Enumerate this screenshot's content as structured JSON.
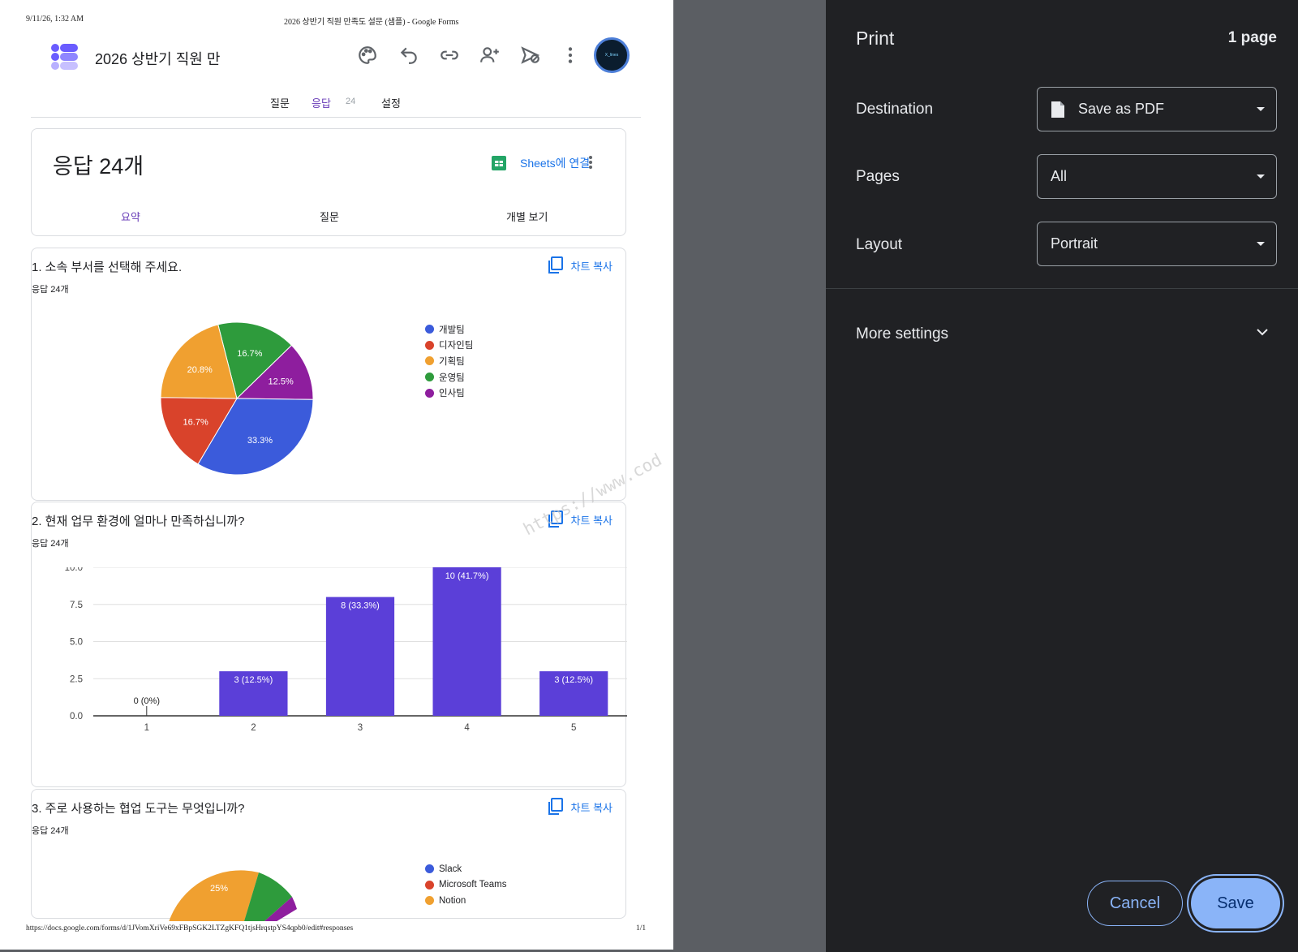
{
  "print_header": {
    "datetime": "9/11/26, 1:32 AM",
    "doc_title": "2026 상반기 직원 만족도 설문 (샘플) - Google Forms"
  },
  "print_footer": {
    "url": "https://docs.google.com/forms/d/1JVomXriVe69xFBpSGK2LTZgKFQ1tjsHrqstpYS4qpb0/edit#responses",
    "page": "1/1"
  },
  "form": {
    "title": "2026 상반기 직원 만",
    "avatar_text": "X_lines",
    "tabs": [
      {
        "label": "질문"
      },
      {
        "label": "응답",
        "badge": "24"
      },
      {
        "label": "설정"
      }
    ]
  },
  "responses": {
    "title": "응답 24개",
    "sheets_link": "Sheets에 연결",
    "subtabs": [
      "요약",
      "질문",
      "개별 보기"
    ]
  },
  "copy_chart_label": "차트 복사",
  "watermark": "https://www.cod",
  "questions": [
    {
      "title": "1. 소속 부서를 선택해 주세요.",
      "count": "응답 24개"
    },
    {
      "title": "2. 현재 업무 환경에 얼마나 만족하십니까?",
      "count": "응답 24개"
    },
    {
      "title": "3. 주로 사용하는 협업 도구는 무엇입니까?",
      "count": "응답 24개"
    }
  ],
  "chart_data": [
    {
      "type": "pie",
      "slices": [
        {
          "name": "개발팀",
          "value": 33.3,
          "label": "33.3%",
          "color": "#3b5bdb"
        },
        {
          "name": "디자인팀",
          "value": 16.7,
          "label": "16.7%",
          "color": "#d9432b"
        },
        {
          "name": "기획팀",
          "value": 20.8,
          "label": "20.8%",
          "color": "#f0a030"
        },
        {
          "name": "운영팀",
          "value": 16.7,
          "label": "16.7%",
          "color": "#2e9b3c"
        },
        {
          "name": "인사팀",
          "value": 12.5,
          "label": "12.5%",
          "color": "#8e1e9e"
        }
      ],
      "legend": [
        "개발팀",
        "디자인팀",
        "기획팀",
        "운영팀",
        "인사팀"
      ],
      "legend_position": "right"
    },
    {
      "type": "bar",
      "categories": [
        "1",
        "2",
        "3",
        "4",
        "5"
      ],
      "values": [
        0,
        3,
        8,
        10,
        3
      ],
      "data_labels": [
        "0 (0%)",
        "3 (12.5%)",
        "8 (33.3%)",
        "10 (41.7%)",
        "3 (12.5%)"
      ],
      "ylim": [
        0,
        10
      ],
      "yticks": [
        "0.0",
        "2.5",
        "5.0",
        "7.5",
        "10.0"
      ],
      "color": "#5b3fd8",
      "grid": true
    },
    {
      "type": "pie",
      "slices_visible": [
        {
          "name": "Notion",
          "label": "25%",
          "color": "#f0a030"
        }
      ],
      "legend": [
        {
          "name": "Slack",
          "color": "#3b5bdb"
        },
        {
          "name": "Microsoft Teams",
          "color": "#d9432b"
        },
        {
          "name": "Notion",
          "color": "#f0a030"
        }
      ],
      "legend_position": "right"
    }
  ],
  "print_panel": {
    "title": "Print",
    "pages_count": "1 page",
    "settings": [
      {
        "label": "Destination",
        "value": "Save as PDF"
      },
      {
        "label": "Pages",
        "value": "All"
      },
      {
        "label": "Layout",
        "value": "Portrait"
      }
    ],
    "more_settings": "More settings",
    "cancel": "Cancel",
    "save": "Save"
  }
}
